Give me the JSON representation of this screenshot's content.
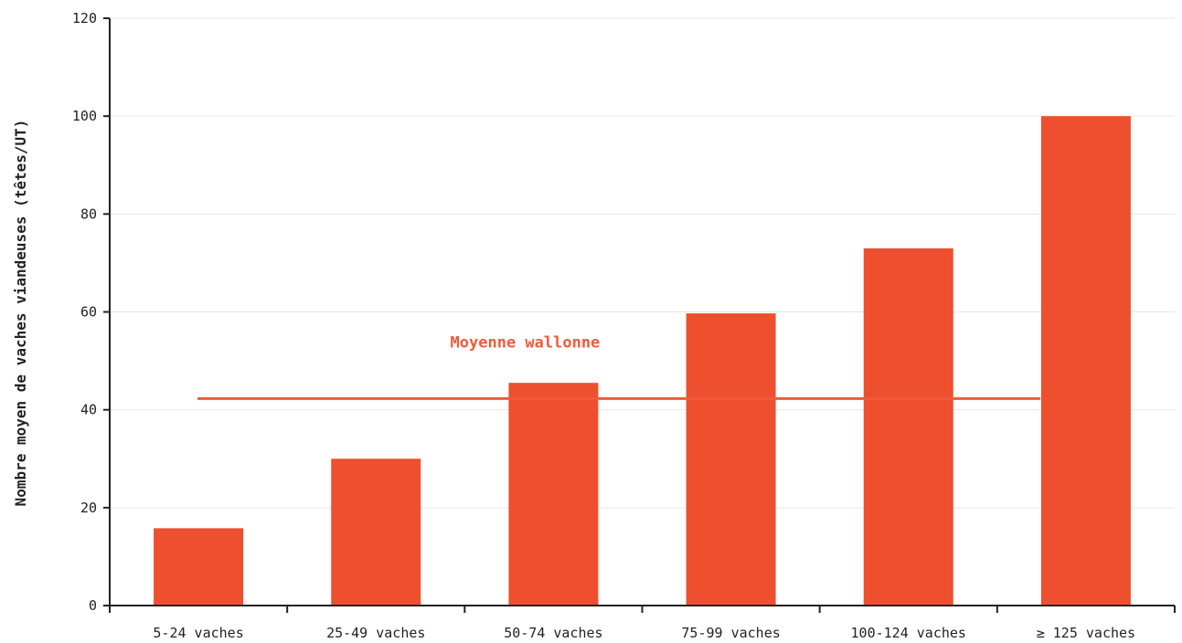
{
  "chart_data": {
    "type": "bar",
    "title": "",
    "xlabel": "",
    "ylabel": "Nombre moyen de vaches viandeuses (têtes/UT)",
    "categories": [
      "5-24 vaches",
      "25-49 vaches",
      "50-74 vaches",
      "75-99 vaches",
      "100-124 vaches",
      "≥ 125 vaches"
    ],
    "values": [
      15.8,
      30,
      45.5,
      59.7,
      73,
      100
    ],
    "ylim": [
      0,
      120
    ],
    "yticks": [
      0,
      20,
      40,
      60,
      80,
      100,
      120
    ],
    "grid": true,
    "bar_color": "#ee4f2e",
    "reference_line": {
      "label": "Moyenne wallonne",
      "value": 42.3,
      "color": "#f05a3c"
    }
  }
}
